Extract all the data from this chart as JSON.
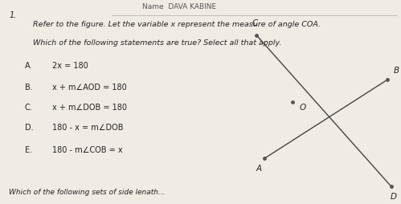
{
  "background_color": "#f0ece4",
  "title_top": "Name  DAVA KABINE",
  "question_number": "1.",
  "line1": "Refer to the figure. Let the variable x represent the measure of angle COA.",
  "line2": "Which of the following statements are true? Select all that apply.",
  "options": [
    [
      "A.",
      "2x = 180"
    ],
    [
      "B.",
      "x + m∠AOD = 180"
    ],
    [
      "C.",
      "x + m∠DOB = 180"
    ],
    [
      "D.",
      "180 - x = m∠DOB"
    ],
    [
      "E.",
      "180 - m∠COB = x"
    ]
  ],
  "footer": "Which of the following sets of side lenath...",
  "text_color": "#222222"
}
